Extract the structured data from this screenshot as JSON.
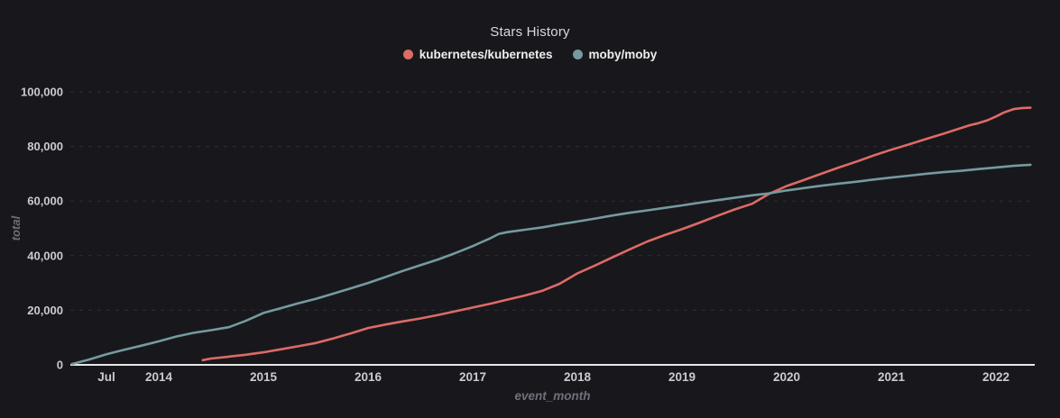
{
  "title": "Stars History",
  "legend": {
    "items": [
      {
        "label": "kubernetes/kubernetes",
        "color": "#dd6b66"
      },
      {
        "label": "moby/moby",
        "color": "#759aa0"
      }
    ]
  },
  "colors": {
    "background": "#18181c",
    "accent_red": "#dd6b66",
    "accent_teal": "#759aa0",
    "axis_line": "#e8e8ea",
    "grid_line": "#2e2f35",
    "tick_label": "#c9cbd0",
    "axis_name": "#6e717a",
    "title_text": "#d8dade",
    "legend_text": "#eeeeee"
  },
  "chart_data": {
    "type": "line",
    "title": "Stars History",
    "xlabel": "event_month",
    "ylabel": "total",
    "x_unit": "decimal_year",
    "xlim": [
      2013.15,
      2022.4
    ],
    "ylim": [
      0,
      100000
    ],
    "grid": "horizontal-dashed",
    "legend_position": "top-center",
    "y_ticks": [
      {
        "value": 0,
        "label": "0"
      },
      {
        "value": 20000,
        "label": "20,000"
      },
      {
        "value": 40000,
        "label": "40,000"
      },
      {
        "value": 60000,
        "label": "60,000"
      },
      {
        "value": 80000,
        "label": "80,000"
      },
      {
        "value": 100000,
        "label": "100,000"
      }
    ],
    "x_ticks": [
      {
        "x": 2013.5,
        "label": "Jul"
      },
      {
        "x": 2014,
        "label": "2014"
      },
      {
        "x": 2015,
        "label": "2015"
      },
      {
        "x": 2016,
        "label": "2016"
      },
      {
        "x": 2017,
        "label": "2017"
      },
      {
        "x": 2018,
        "label": "2018"
      },
      {
        "x": 2019,
        "label": "2019"
      },
      {
        "x": 2020,
        "label": "2020"
      },
      {
        "x": 2021,
        "label": "2021"
      },
      {
        "x": 2022,
        "label": "2022"
      }
    ],
    "series": [
      {
        "name": "kubernetes/kubernetes",
        "color": "#dd6b66",
        "points": [
          [
            2014.42,
            1700
          ],
          [
            2014.5,
            2300
          ],
          [
            2014.67,
            3000
          ],
          [
            2014.83,
            3700
          ],
          [
            2015.0,
            4600
          ],
          [
            2015.17,
            5700
          ],
          [
            2015.33,
            6800
          ],
          [
            2015.5,
            8000
          ],
          [
            2015.67,
            9700
          ],
          [
            2015.83,
            11500
          ],
          [
            2016.0,
            13500
          ],
          [
            2016.17,
            14800
          ],
          [
            2016.33,
            15900
          ],
          [
            2016.5,
            17000
          ],
          [
            2016.67,
            18300
          ],
          [
            2016.83,
            19600
          ],
          [
            2017.0,
            21000
          ],
          [
            2017.17,
            22400
          ],
          [
            2017.33,
            23900
          ],
          [
            2017.5,
            25400
          ],
          [
            2017.67,
            27200
          ],
          [
            2017.83,
            29700
          ],
          [
            2018.0,
            33500
          ],
          [
            2018.17,
            36400
          ],
          [
            2018.33,
            39300
          ],
          [
            2018.5,
            42300
          ],
          [
            2018.67,
            45200
          ],
          [
            2018.83,
            47500
          ],
          [
            2019.0,
            49700
          ],
          [
            2019.17,
            52100
          ],
          [
            2019.33,
            54500
          ],
          [
            2019.5,
            56900
          ],
          [
            2019.67,
            59000
          ],
          [
            2019.83,
            62600
          ],
          [
            2020.0,
            65500
          ],
          [
            2020.17,
            67800
          ],
          [
            2020.33,
            70000
          ],
          [
            2020.5,
            72300
          ],
          [
            2020.67,
            74500
          ],
          [
            2020.83,
            76700
          ],
          [
            2021.0,
            78800
          ],
          [
            2021.17,
            80800
          ],
          [
            2021.33,
            82700
          ],
          [
            2021.5,
            84700
          ],
          [
            2021.67,
            86800
          ],
          [
            2021.75,
            87800
          ],
          [
            2021.83,
            88500
          ],
          [
            2021.92,
            89600
          ],
          [
            2022.0,
            91000
          ],
          [
            2022.08,
            92500
          ],
          [
            2022.17,
            93700
          ],
          [
            2022.25,
            94100
          ],
          [
            2022.33,
            94200
          ]
        ]
      },
      {
        "name": "moby/moby",
        "color": "#759aa0",
        "points": [
          [
            2013.17,
            300
          ],
          [
            2013.33,
            1900
          ],
          [
            2013.5,
            3900
          ],
          [
            2013.67,
            5500
          ],
          [
            2013.83,
            7000
          ],
          [
            2014.0,
            8600
          ],
          [
            2014.17,
            10400
          ],
          [
            2014.33,
            11700
          ],
          [
            2014.5,
            12700
          ],
          [
            2014.67,
            13800
          ],
          [
            2014.83,
            16100
          ],
          [
            2015.0,
            19000
          ],
          [
            2015.17,
            20800
          ],
          [
            2015.33,
            22500
          ],
          [
            2015.5,
            24200
          ],
          [
            2015.67,
            26100
          ],
          [
            2015.83,
            28000
          ],
          [
            2016.0,
            30000
          ],
          [
            2016.17,
            32200
          ],
          [
            2016.33,
            34400
          ],
          [
            2016.5,
            36500
          ],
          [
            2016.67,
            38600
          ],
          [
            2016.83,
            40900
          ],
          [
            2017.0,
            43500
          ],
          [
            2017.08,
            44900
          ],
          [
            2017.17,
            46400
          ],
          [
            2017.25,
            48000
          ],
          [
            2017.33,
            48600
          ],
          [
            2017.5,
            49500
          ],
          [
            2017.67,
            50400
          ],
          [
            2017.83,
            51500
          ],
          [
            2018.0,
            52500
          ],
          [
            2018.17,
            53600
          ],
          [
            2018.33,
            54700
          ],
          [
            2018.5,
            55700
          ],
          [
            2018.67,
            56600
          ],
          [
            2018.83,
            57500
          ],
          [
            2019.0,
            58400
          ],
          [
            2019.17,
            59400
          ],
          [
            2019.33,
            60300
          ],
          [
            2019.5,
            61200
          ],
          [
            2019.67,
            62100
          ],
          [
            2019.83,
            62800
          ],
          [
            2020.0,
            63900
          ],
          [
            2020.17,
            64800
          ],
          [
            2020.33,
            65600
          ],
          [
            2020.5,
            66400
          ],
          [
            2020.67,
            67100
          ],
          [
            2020.83,
            67900
          ],
          [
            2021.0,
            68600
          ],
          [
            2021.17,
            69300
          ],
          [
            2021.33,
            70000
          ],
          [
            2021.5,
            70600
          ],
          [
            2021.67,
            71100
          ],
          [
            2021.83,
            71700
          ],
          [
            2022.0,
            72300
          ],
          [
            2022.17,
            72900
          ],
          [
            2022.33,
            73300
          ]
        ]
      }
    ]
  }
}
